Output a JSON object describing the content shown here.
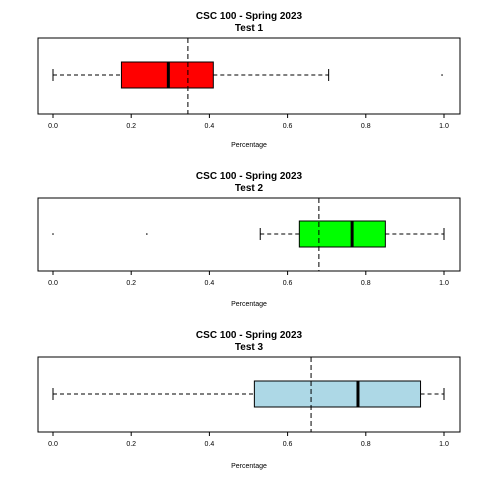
{
  "chart_data": [
    {
      "type": "boxplot",
      "title": "CSC 100 - Spring 2023",
      "subtitle": "Test 1",
      "xlabel": "Percentage",
      "xlim": [
        0.0,
        1.0
      ],
      "ticks": [
        "0.0",
        "0.2",
        "0.4",
        "0.6",
        "0.8",
        "1.0"
      ],
      "box_color": "#ff0000",
      "box": {
        "whisker_low": 0.0,
        "q1": 0.175,
        "median": 0.295,
        "q3": 0.41,
        "whisker_high": 0.705
      },
      "outliers": [
        0.995
      ],
      "mean": 0.345
    },
    {
      "type": "boxplot",
      "title": "CSC 100 - Spring 2023",
      "subtitle": "Test 2",
      "xlabel": "Percentage",
      "xlim": [
        0.0,
        1.0
      ],
      "ticks": [
        "0.0",
        "0.2",
        "0.4",
        "0.6",
        "0.8",
        "1.0"
      ],
      "box_color": "#00ff00",
      "box": {
        "whisker_low": 0.53,
        "q1": 0.63,
        "median": 0.765,
        "q3": 0.85,
        "whisker_high": 1.0
      },
      "outliers": [
        0.0,
        0.24
      ],
      "mean": 0.68
    },
    {
      "type": "boxplot",
      "title": "CSC 100 - Spring 2023",
      "subtitle": "Test 3",
      "xlabel": "Percentage",
      "xlim": [
        0.0,
        1.0
      ],
      "ticks": [
        "0.0",
        "0.2",
        "0.4",
        "0.6",
        "0.8",
        "1.0"
      ],
      "box_color": "#add8e6",
      "box": {
        "whisker_low": 0.0,
        "q1": 0.515,
        "median": 0.78,
        "q3": 0.94,
        "whisker_high": 1.0
      },
      "outliers": [],
      "mean": 0.66
    }
  ]
}
